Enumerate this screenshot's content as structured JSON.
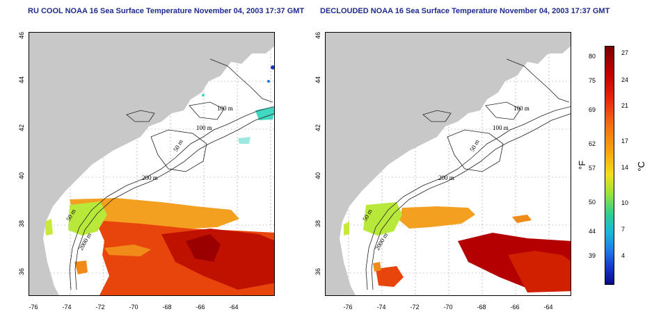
{
  "titles": {
    "left": "RU COOL NOAA 16 Sea Surface Temperature November 04, 2003 17:37 GMT",
    "right": "DECLOUDED NOAA 16 Sea Surface Temperature November 04, 2003 17:37 GMT"
  },
  "axes": {
    "lat_ticks": [
      "46",
      "44",
      "42",
      "40",
      "38",
      "36"
    ],
    "lon_ticks": [
      "-76",
      "-74",
      "-72",
      "-70",
      "-68",
      "-66",
      "-64"
    ]
  },
  "contour_labels": {
    "m100a": "100 m",
    "m100b": "100 m",
    "m50a": "50 m",
    "m200": "200 m",
    "m50b": "50 m",
    "m2000": "2000 m"
  },
  "colorbar": {
    "fahrenheit_ticks": [
      "80",
      "75",
      "69",
      "62",
      "57",
      "50",
      "44",
      "39"
    ],
    "celsius_ticks": [
      "27",
      "24",
      "21",
      "17",
      "14",
      "10",
      "7",
      "4"
    ],
    "unit_f": "°F",
    "unit_c": "°C"
  },
  "colors": {
    "land": "#c8c8c8",
    "title": "#1f2a8f",
    "warm_dark": "#b40000",
    "warm_mid": "#e83a10",
    "orange": "#f3a020",
    "yellow_green": "#b8e83a"
  }
}
